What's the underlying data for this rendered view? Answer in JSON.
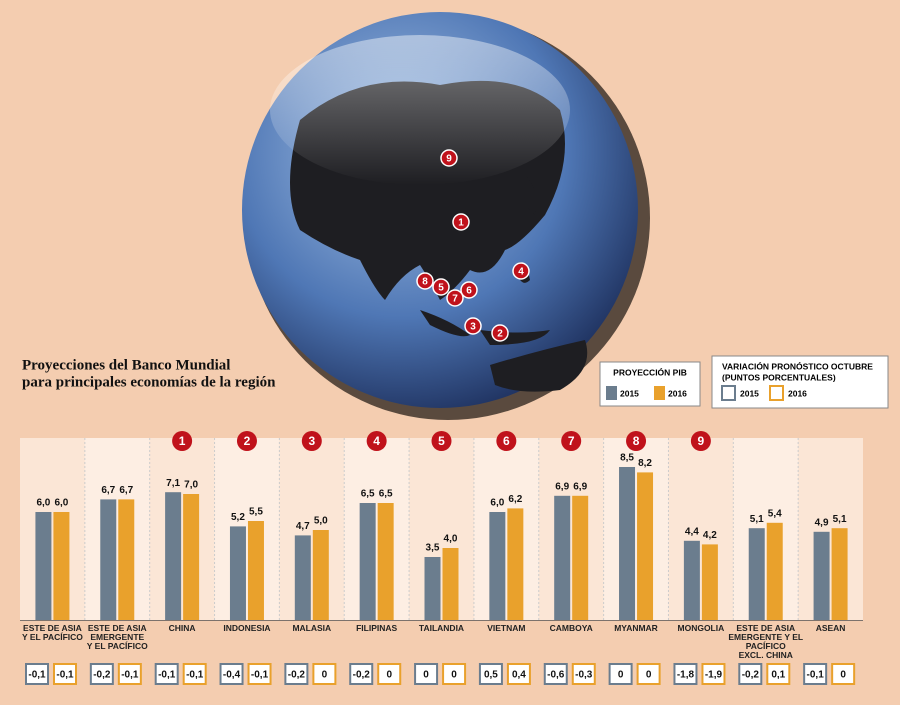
{
  "chart_data": {
    "type": "bar",
    "title": "Proyecciones del Banco Mundial",
    "subtitle": "para principales economías de la región",
    "legend_title": "PROYECCIÓN PIB",
    "categories": [
      "ESTE DE ASIA\nY EL PACÍFICO",
      "ESTE DE ASIA\nEMERGENTE\nY EL PACÍFICO",
      "CHINA",
      "INDONESIA",
      "MALASIA",
      "FILIPINAS",
      "TAILANDIA",
      "VIETNAM",
      "CAMBOYA",
      "MYANMAR",
      "MONGOLIA",
      "ESTE DE ASIA\nEMERGENTE Y EL\nPACÍFICO\nEXCL. CHINA",
      "ASEAN"
    ],
    "badges": [
      null,
      null,
      "1",
      "2",
      "3",
      "4",
      "5",
      "6",
      "7",
      "8",
      "9",
      null,
      null
    ],
    "series": [
      {
        "name": "2015",
        "color": "#6b7d8e",
        "values": [
          6.0,
          6.7,
          7.1,
          5.2,
          4.7,
          6.5,
          3.5,
          6.0,
          6.9,
          8.5,
          4.4,
          5.1,
          4.9
        ],
        "value_labels": [
          "6,0",
          "6,7",
          "7,1",
          "5,2",
          "4,7",
          "6,5",
          "3,5",
          "6,0",
          "6,9",
          "8,5",
          "4,4",
          "5,1",
          "4,9"
        ]
      },
      {
        "name": "2016",
        "color": "#e9a12c",
        "values": [
          6.0,
          6.7,
          7.0,
          5.5,
          5.0,
          6.5,
          4.0,
          6.2,
          6.9,
          8.2,
          4.2,
          5.4,
          5.1
        ],
        "value_labels": [
          "6,0",
          "6,7",
          "7,0",
          "5,5",
          "5,0",
          "6,5",
          "4,0",
          "6,2",
          "6,9",
          "8,2",
          "4,2",
          "5,4",
          "5,1"
        ]
      }
    ],
    "variation": {
      "title": "VARIACIÓN PRONÓSTICO OCTUBRE",
      "subtitle": "(PUNTOS PORCENTUALES)",
      "series": [
        {
          "name": "2015",
          "color": "#6b7d8e",
          "values": [
            -0.1,
            -0.2,
            -0.1,
            -0.4,
            -0.2,
            -0.2,
            0,
            0.5,
            -0.6,
            0,
            -1.8,
            -0.2,
            -0.1
          ],
          "value_labels": [
            "-0,1",
            "-0,2",
            "-0,1",
            "-0,4",
            "-0,2",
            "-0,2",
            "0",
            "0,5",
            "-0,6",
            "0",
            "-1,8",
            "-0,2",
            "-0,1"
          ]
        },
        {
          "name": "2016",
          "color": "#e9a12c",
          "values": [
            -0.1,
            -0.1,
            -0.1,
            -0.1,
            0,
            0,
            0,
            0.4,
            -0.3,
            0,
            -1.9,
            0.1,
            0
          ],
          "value_labels": [
            "-0,1",
            "-0,1",
            "-0,1",
            "-0,1",
            "0",
            "0",
            "0",
            "0,4",
            "-0,3",
            "0",
            "-1,9",
            "0,1",
            "0"
          ]
        }
      ]
    }
  }
}
